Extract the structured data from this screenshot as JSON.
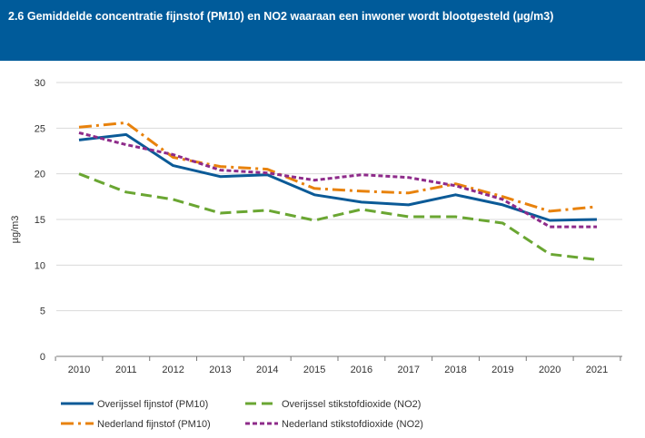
{
  "header": {
    "title": "2.6 Gemiddelde concentratie fijnstof (PM10) en NO2 waaraan een inwoner wordt blootgesteld (µg/m3)"
  },
  "chart_data": {
    "type": "line",
    "title": "2.6 Gemiddelde concentratie fijnstof (PM10) en NO2 waaraan een inwoner wordt blootgesteld (µg/m3)",
    "ylabel": "µg/m3",
    "xlabel": "",
    "x": [
      "2010",
      "2011",
      "2012",
      "2013",
      "2014",
      "2015",
      "2016",
      "2017",
      "2018",
      "2019",
      "2020",
      "2021"
    ],
    "ylim": [
      0,
      30
    ],
    "yticks": [
      "0",
      "5",
      "10",
      "15",
      "20",
      "25",
      "30"
    ],
    "grid": "horizontal",
    "legend_position": "bottom",
    "series": [
      {
        "name": "Overijssel fijnstof (PM10)",
        "color": "#0b5a97",
        "style": "solid",
        "values": [
          23.7,
          24.3,
          20.9,
          19.7,
          19.9,
          17.7,
          16.9,
          16.6,
          17.7,
          16.6,
          14.9,
          15.0
        ]
      },
      {
        "name": "Overijssel stikstofdioxide (NO2)",
        "color": "#6aa632",
        "style": "dash",
        "values": [
          20.0,
          18.0,
          17.2,
          15.7,
          16.0,
          14.9,
          16.1,
          15.3,
          15.3,
          14.6,
          11.2,
          10.6
        ]
      },
      {
        "name": "Nederland fijnstof (PM10)",
        "color": "#e8820c",
        "style": "dashdot",
        "values": [
          25.1,
          25.6,
          21.8,
          20.8,
          20.5,
          18.4,
          18.1,
          17.9,
          18.9,
          17.5,
          15.9,
          16.4
        ]
      },
      {
        "name": "Nederland stikstofdioxide (NO2)",
        "color": "#8e2b8a",
        "style": "dot",
        "values": [
          24.5,
          23.2,
          22.1,
          20.4,
          20.1,
          19.3,
          19.9,
          19.6,
          18.7,
          17.2,
          14.2,
          14.2
        ]
      }
    ]
  }
}
